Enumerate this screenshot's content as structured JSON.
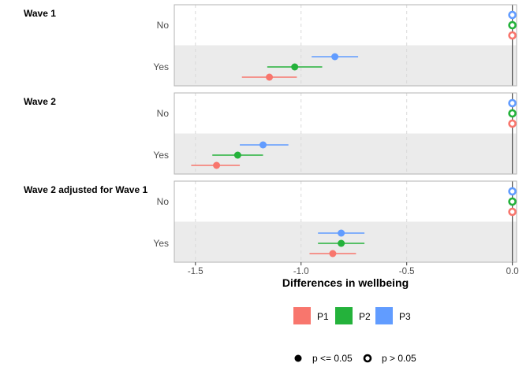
{
  "chart_data": {
    "type": "scatter",
    "xlabel": "Differences in wellbeing",
    "xlim": [
      -1.6,
      0.02
    ],
    "xticks": [
      -1.5,
      -1.0,
      -0.5,
      0.0
    ],
    "xtick_labels": [
      "-1.5",
      "-1.0",
      "-0.5",
      "0.0"
    ],
    "rows": [
      "No",
      "Yes"
    ],
    "series": [
      {
        "name": "P1",
        "color": "#F8766D"
      },
      {
        "name": "P2",
        "color": "#24B23B"
      },
      {
        "name": "P3",
        "color": "#619CFF"
      }
    ],
    "significance_legend": [
      {
        "label": "p <= 0.05",
        "marker": "filled"
      },
      {
        "label": "p > 0.05",
        "marker": "hollow"
      }
    ],
    "panels": [
      {
        "title": "Wave 1",
        "points": [
          {
            "row": "No",
            "series": "P3",
            "est": 0.0,
            "lo": 0.0,
            "hi": 0.0,
            "significant": false
          },
          {
            "row": "No",
            "series": "P2",
            "est": 0.0,
            "lo": 0.0,
            "hi": 0.0,
            "significant": false
          },
          {
            "row": "No",
            "series": "P1",
            "est": 0.0,
            "lo": 0.0,
            "hi": 0.0,
            "significant": false
          },
          {
            "row": "Yes",
            "series": "P3",
            "est": -0.84,
            "lo": -0.95,
            "hi": -0.73,
            "significant": true
          },
          {
            "row": "Yes",
            "series": "P2",
            "est": -1.03,
            "lo": -1.16,
            "hi": -0.9,
            "significant": true
          },
          {
            "row": "Yes",
            "series": "P1",
            "est": -1.15,
            "lo": -1.28,
            "hi": -1.02,
            "significant": true
          }
        ]
      },
      {
        "title": "Wave 2",
        "points": [
          {
            "row": "No",
            "series": "P3",
            "est": 0.0,
            "lo": 0.0,
            "hi": 0.0,
            "significant": false
          },
          {
            "row": "No",
            "series": "P2",
            "est": 0.0,
            "lo": 0.0,
            "hi": 0.0,
            "significant": false
          },
          {
            "row": "No",
            "series": "P1",
            "est": 0.0,
            "lo": 0.0,
            "hi": 0.0,
            "significant": false
          },
          {
            "row": "Yes",
            "series": "P3",
            "est": -1.18,
            "lo": -1.29,
            "hi": -1.06,
            "significant": true
          },
          {
            "row": "Yes",
            "series": "P2",
            "est": -1.3,
            "lo": -1.42,
            "hi": -1.18,
            "significant": true
          },
          {
            "row": "Yes",
            "series": "P1",
            "est": -1.4,
            "lo": -1.52,
            "hi": -1.29,
            "significant": true
          }
        ]
      },
      {
        "title": "Wave 2 adjusted for Wave 1",
        "points": [
          {
            "row": "No",
            "series": "P3",
            "est": 0.0,
            "lo": 0.0,
            "hi": 0.0,
            "significant": false
          },
          {
            "row": "No",
            "series": "P2",
            "est": 0.0,
            "lo": 0.0,
            "hi": 0.0,
            "significant": false
          },
          {
            "row": "No",
            "series": "P1",
            "est": 0.0,
            "lo": 0.0,
            "hi": 0.0,
            "significant": false
          },
          {
            "row": "Yes",
            "series": "P3",
            "est": -0.81,
            "lo": -0.92,
            "hi": -0.7,
            "significant": true
          },
          {
            "row": "Yes",
            "series": "P2",
            "est": -0.81,
            "lo": -0.92,
            "hi": -0.7,
            "significant": true
          },
          {
            "row": "Yes",
            "series": "P1",
            "est": -0.85,
            "lo": -0.96,
            "hi": -0.74,
            "significant": true
          }
        ]
      }
    ]
  }
}
